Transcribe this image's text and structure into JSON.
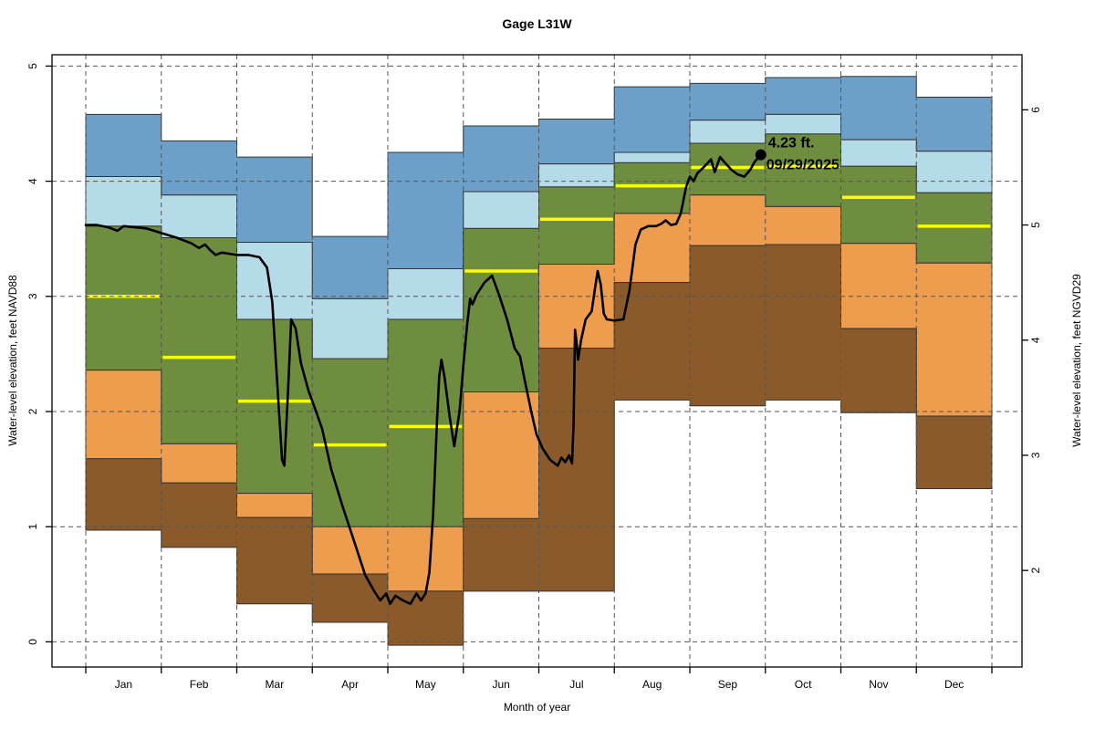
{
  "title": "Gage L31W",
  "axes": {
    "x_label": "Month of year",
    "y_left_label": "Water-level elevation, feet NAVD88",
    "y_right_label": "Water-level elevation, feet NGVD29",
    "y_left_ticks": [
      0,
      1,
      2,
      3,
      4,
      5
    ],
    "y_right_ticks": [
      2,
      3,
      4,
      5,
      6
    ],
    "datum_offset_ngvd29_minus_navd88": 1.38,
    "grid": "dashed, horizontal at left-axis integers, vertical at month boundaries"
  },
  "colors": {
    "band_90_max": "#6CA0C8",
    "band_75_90": "#B5DAE8",
    "band_25_75": "#6E8D3E",
    "band_10_25": "#EE9C4D",
    "band_min_10": "#8B5A2B",
    "median": "#FFFF00",
    "trace": "#000000",
    "band_outline": "#333333",
    "grid": "#555555"
  },
  "chart_data": {
    "type": "area",
    "subtype": "monthly-percentile-step-bands-with-daily-trace",
    "x_unit": "month",
    "categories": [
      "Jan",
      "Feb",
      "Mar",
      "Apr",
      "May",
      "Jun",
      "Jul",
      "Aug",
      "Sep",
      "Oct",
      "Nov",
      "Dec"
    ],
    "ylabel": "Water-level elevation, feet NAVD88",
    "ylabel_right": "Water-level elevation, feet NGVD29",
    "ylim": [
      -0.22,
      5.1
    ],
    "legend_position": "none",
    "percentiles_navd88": {
      "min": [
        0.97,
        0.82,
        0.33,
        0.17,
        -0.03,
        0.44,
        0.44,
        2.1,
        2.05,
        2.1,
        1.99,
        1.33
      ],
      "p10": [
        1.59,
        1.38,
        1.08,
        0.59,
        0.44,
        1.07,
        2.55,
        3.12,
        3.44,
        3.45,
        2.72,
        1.96
      ],
      "p25": [
        2.36,
        1.72,
        1.29,
        1.0,
        1.0,
        2.17,
        3.28,
        3.72,
        3.88,
        3.78,
        3.46,
        3.29
      ],
      "p50": [
        3.0,
        2.47,
        2.09,
        1.71,
        1.87,
        3.22,
        3.67,
        3.96,
        4.12,
        4.13,
        3.86,
        3.61
      ],
      "p75": [
        3.61,
        3.51,
        2.8,
        2.46,
        2.8,
        3.59,
        3.95,
        4.16,
        4.33,
        4.41,
        4.13,
        3.9
      ],
      "p90": [
        4.04,
        3.88,
        3.47,
        2.98,
        3.24,
        3.91,
        4.15,
        4.25,
        4.53,
        4.58,
        4.36,
        4.26
      ],
      "max": [
        4.58,
        4.35,
        4.21,
        3.52,
        4.25,
        4.48,
        4.54,
        4.82,
        4.85,
        4.9,
        4.91,
        4.73
      ]
    },
    "bands": [
      {
        "name": "band-p90-max",
        "lo": "p90",
        "hi": "max",
        "color_key": "band_90_max"
      },
      {
        "name": "band-p75-p90",
        "lo": "p75",
        "hi": "p90",
        "color_key": "band_75_90"
      },
      {
        "name": "band-p25-p75",
        "lo": "p25",
        "hi": "p75",
        "color_key": "band_25_75"
      },
      {
        "name": "band-p10-p25",
        "lo": "p10",
        "hi": "p25",
        "color_key": "band_10_25"
      },
      {
        "name": "band-min-p10",
        "lo": "min",
        "hi": "p10",
        "color_key": "band_min_10"
      }
    ],
    "median_series": "p50",
    "trace": {
      "name": "current-year-daily-water-level",
      "points": [
        [
          0.0,
          3.62
        ],
        [
          0.15,
          3.62
        ],
        [
          0.3,
          3.6
        ],
        [
          0.42,
          3.57
        ],
        [
          0.5,
          3.61
        ],
        [
          0.65,
          3.6
        ],
        [
          0.8,
          3.59
        ],
        [
          1.0,
          3.55
        ],
        [
          1.2,
          3.51
        ],
        [
          1.4,
          3.46
        ],
        [
          1.5,
          3.42
        ],
        [
          1.58,
          3.45
        ],
        [
          1.65,
          3.4
        ],
        [
          1.72,
          3.36
        ],
        [
          1.8,
          3.38
        ],
        [
          2.0,
          3.36
        ],
        [
          2.15,
          3.36
        ],
        [
          2.3,
          3.34
        ],
        [
          2.4,
          3.25
        ],
        [
          2.47,
          2.95
        ],
        [
          2.53,
          2.3
        ],
        [
          2.6,
          1.58
        ],
        [
          2.63,
          1.53
        ],
        [
          2.68,
          2.2
        ],
        [
          2.72,
          2.8
        ],
        [
          2.78,
          2.72
        ],
        [
          2.85,
          2.42
        ],
        [
          2.95,
          2.18
        ],
        [
          3.05,
          2.0
        ],
        [
          3.13,
          1.85
        ],
        [
          3.25,
          1.5
        ],
        [
          3.4,
          1.18
        ],
        [
          3.55,
          0.88
        ],
        [
          3.7,
          0.58
        ],
        [
          3.82,
          0.44
        ],
        [
          3.9,
          0.36
        ],
        [
          3.98,
          0.42
        ],
        [
          4.03,
          0.33
        ],
        [
          4.1,
          0.4
        ],
        [
          4.2,
          0.36
        ],
        [
          4.3,
          0.33
        ],
        [
          4.38,
          0.42
        ],
        [
          4.44,
          0.36
        ],
        [
          4.5,
          0.42
        ],
        [
          4.55,
          0.6
        ],
        [
          4.6,
          1.1
        ],
        [
          4.65,
          1.9
        ],
        [
          4.68,
          2.3
        ],
        [
          4.71,
          2.45
        ],
        [
          4.75,
          2.3
        ],
        [
          4.82,
          1.95
        ],
        [
          4.88,
          1.7
        ],
        [
          4.95,
          2.0
        ],
        [
          5.0,
          2.4
        ],
        [
          5.05,
          2.75
        ],
        [
          5.09,
          2.98
        ],
        [
          5.12,
          2.93
        ],
        [
          5.18,
          3.02
        ],
        [
          5.28,
          3.12
        ],
        [
          5.38,
          3.18
        ],
        [
          5.48,
          3.0
        ],
        [
          5.58,
          2.8
        ],
        [
          5.68,
          2.55
        ],
        [
          5.75,
          2.48
        ],
        [
          5.82,
          2.25
        ],
        [
          5.9,
          2.0
        ],
        [
          5.97,
          1.8
        ],
        [
          6.05,
          1.68
        ],
        [
          6.15,
          1.58
        ],
        [
          6.25,
          1.53
        ],
        [
          6.3,
          1.6
        ],
        [
          6.35,
          1.56
        ],
        [
          6.4,
          1.62
        ],
        [
          6.44,
          1.55
        ],
        [
          6.46,
          1.9
        ],
        [
          6.48,
          2.71
        ],
        [
          6.5,
          2.6
        ],
        [
          6.52,
          2.45
        ],
        [
          6.56,
          2.62
        ],
        [
          6.62,
          2.8
        ],
        [
          6.7,
          2.87
        ],
        [
          6.74,
          3.05
        ],
        [
          6.78,
          3.22
        ],
        [
          6.82,
          3.1
        ],
        [
          6.86,
          2.85
        ],
        [
          6.9,
          2.8
        ],
        [
          7.0,
          2.79
        ],
        [
          7.12,
          2.8
        ],
        [
          7.2,
          3.05
        ],
        [
          7.28,
          3.45
        ],
        [
          7.35,
          3.58
        ],
        [
          7.45,
          3.61
        ],
        [
          7.55,
          3.61
        ],
        [
          7.62,
          3.63
        ],
        [
          7.68,
          3.66
        ],
        [
          7.75,
          3.62
        ],
        [
          7.82,
          3.63
        ],
        [
          7.88,
          3.72
        ],
        [
          7.95,
          3.95
        ],
        [
          8.0,
          4.04
        ],
        [
          8.05,
          4.0
        ],
        [
          8.1,
          4.07
        ],
        [
          8.18,
          4.12
        ],
        [
          8.28,
          4.19
        ],
        [
          8.33,
          4.08
        ],
        [
          8.4,
          4.21
        ],
        [
          8.48,
          4.15
        ],
        [
          8.55,
          4.1
        ],
        [
          8.63,
          4.06
        ],
        [
          8.72,
          4.04
        ],
        [
          8.8,
          4.1
        ],
        [
          8.86,
          4.17
        ],
        [
          8.94,
          4.23
        ]
      ]
    },
    "annotation": {
      "value_label": "4.23 ft.",
      "date_label": "09/29/2025",
      "x_month": 8.94,
      "value_navd88": 4.23,
      "marker": "filled-circle"
    }
  }
}
